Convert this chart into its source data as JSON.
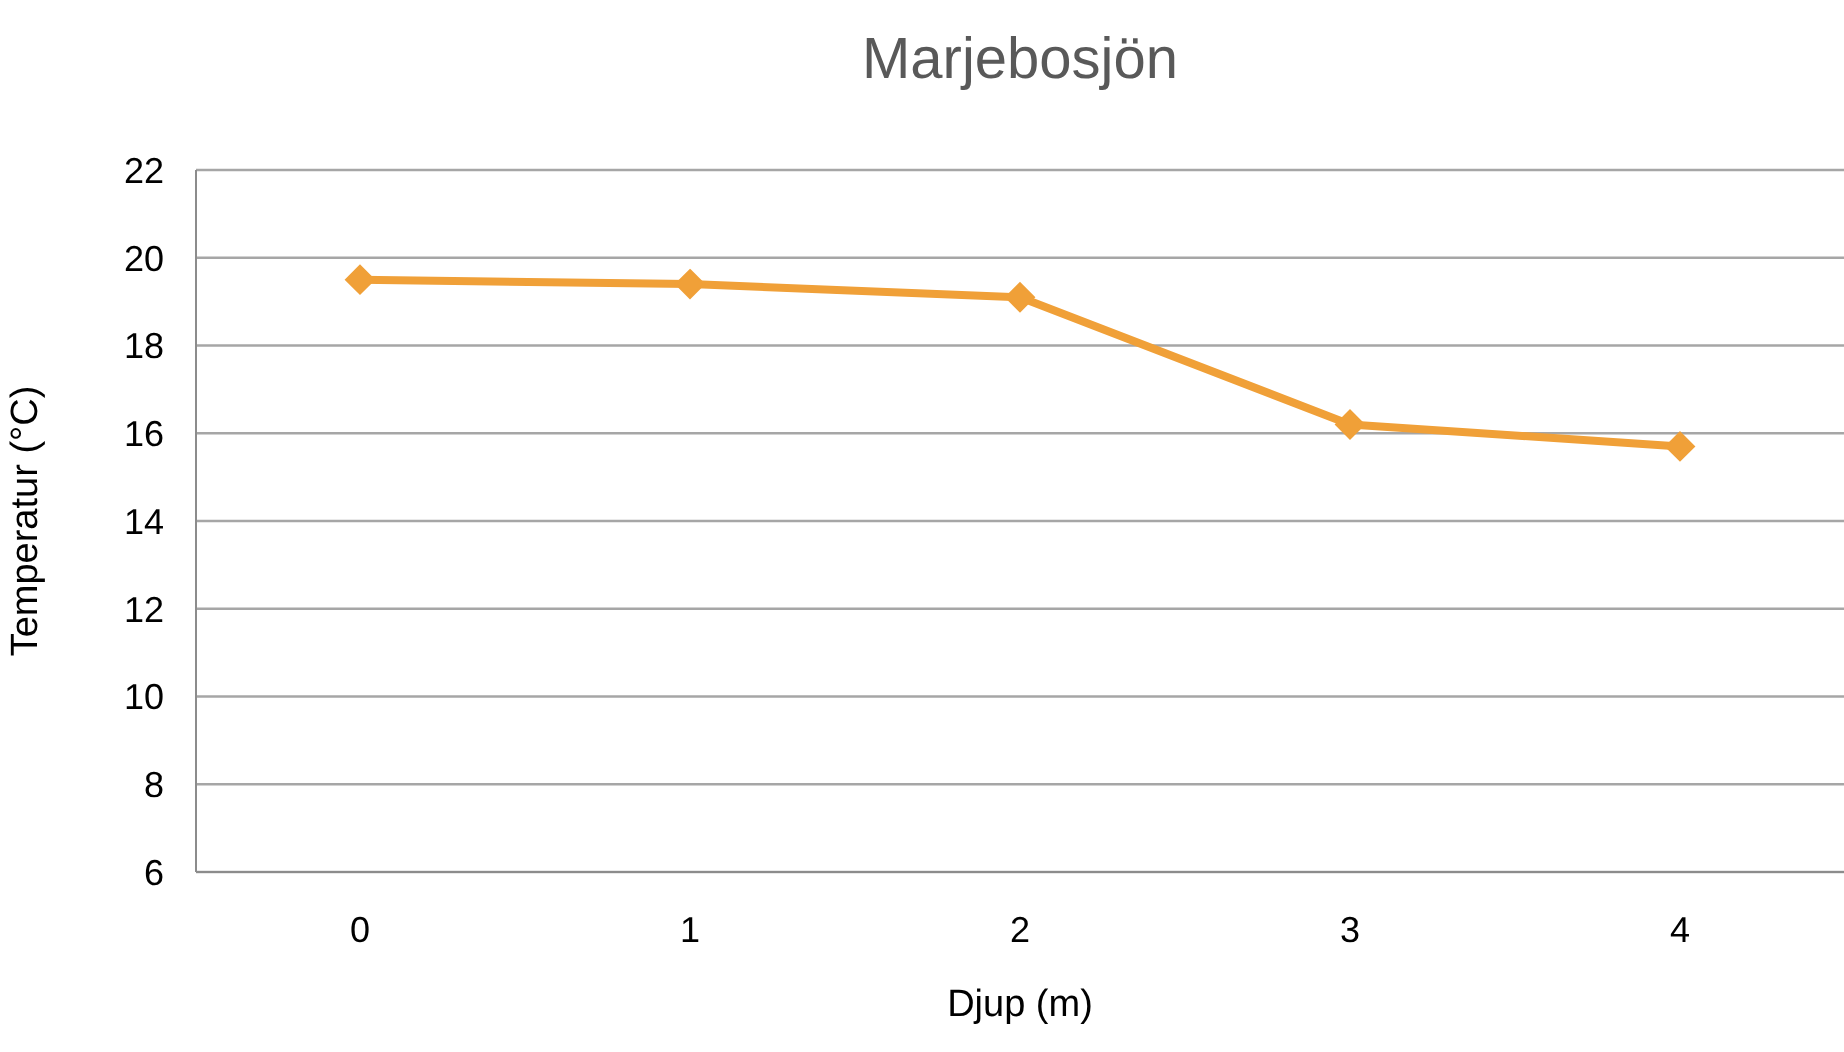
{
  "chart_data": {
    "type": "line",
    "title": "Marjebosjön",
    "xlabel": "Djup (m)",
    "ylabel": "Temperatur (°C)",
    "categories": [
      "0",
      "1",
      "2",
      "3",
      "4"
    ],
    "series": [
      {
        "color": "#f0a038",
        "values": [
          19.5,
          19.4,
          19.1,
          16.2,
          15.7
        ]
      }
    ],
    "ylim": [
      6,
      22
    ],
    "yticks": [
      6,
      8,
      10,
      12,
      14,
      16,
      18,
      20,
      22
    ],
    "grid": "y",
    "marker": "diamond",
    "line_style": "solid"
  }
}
